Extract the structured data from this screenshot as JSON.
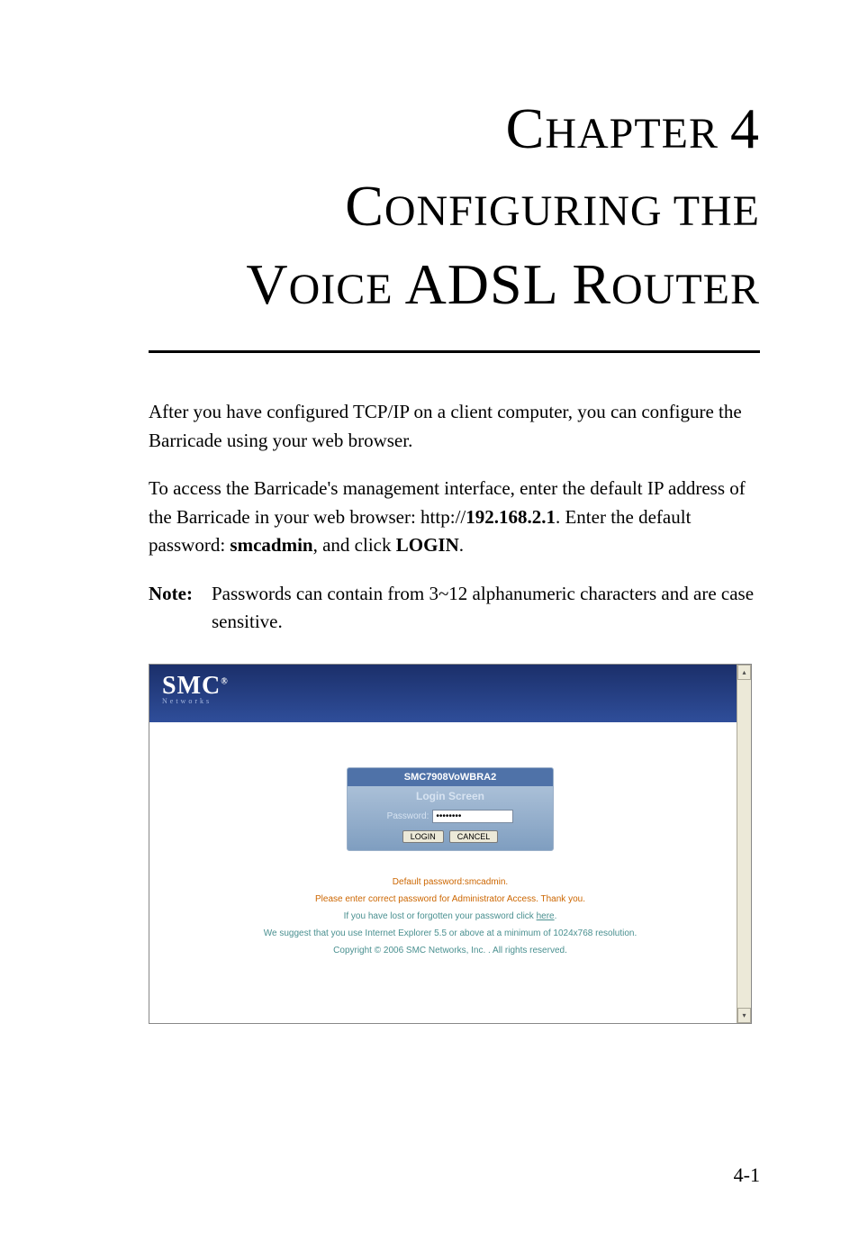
{
  "chapter": {
    "label_word": "HAPTER",
    "label_cap": "C",
    "number": "4",
    "title_line1_cap": "C",
    "title_line1_rest": "ONFIGURING THE",
    "title_line2_cap1": "V",
    "title_line2_rest1": "OICE",
    "title_line2_cap2": "ADSL R",
    "title_line2_rest2": "OUTER"
  },
  "paragraphs": {
    "p1": "After you have configured TCP/IP on a client computer, you can configure the Barricade using your web browser.",
    "p2_a": "To access the Barricade's management interface, enter the default IP address of the Barricade in your web browser: http://",
    "p2_ip": "192.168.2.1",
    "p2_b": ". Enter the default password: ",
    "p2_pw": "smcadmin",
    "p2_c": ", and click ",
    "p2_login": "LOGIN",
    "p2_d": "."
  },
  "note": {
    "label": "Note:",
    "text": "Passwords can contain from 3~12 alphanumeric characters and are case sensitive."
  },
  "screenshot": {
    "logo_main": "SMC",
    "logo_reg": "®",
    "logo_sub": "Networks",
    "panel_title": "SMC7908VoWBRA2",
    "panel_sub": "Login Screen",
    "password_label": "Password:",
    "password_value": "••••••••",
    "login_btn": "LOGIN",
    "cancel_btn": "CANCEL",
    "default_pw": "Default password:smcadmin.",
    "admin_access": "Please enter correct password for Administrator Access. Thank you.",
    "forgot_a": "If you have lost or forgotten your password click ",
    "forgot_link": "here",
    "forgot_b": ".",
    "ie_rec": "We suggest that you use Internet Explorer 5.5 or above at a minimum of 1024x768 resolution.",
    "copyright": "Copyright © 2006 SMC Networks, Inc. . All rights reserved.",
    "colors": {
      "header_grad_top": "#1b2f6a",
      "header_grad_bot": "#2f4e9a",
      "panel_title_bg": "#4f72a8",
      "orange_text": "#cc6600",
      "teal_text": "#4a9090"
    }
  },
  "page_number": "4-1"
}
